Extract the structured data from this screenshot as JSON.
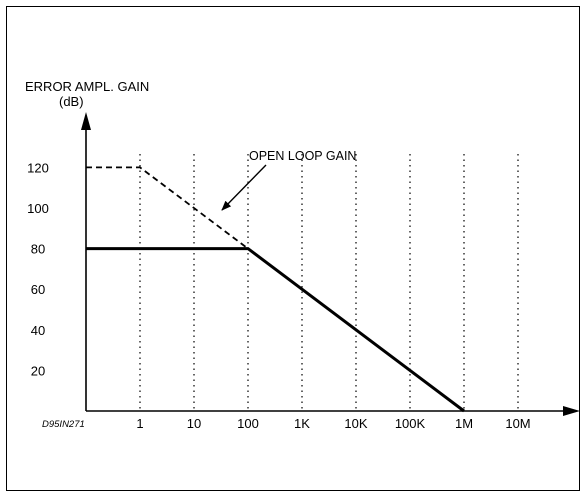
{
  "chart_data": {
    "type": "line",
    "ylabel_line1": "ERROR AMPL. GAIN",
    "ylabel_line2": "(dB)",
    "figure_id": "D95IN271",
    "annotation": "OPEN LOOP GAIN",
    "x_scale": "log",
    "x_ticks": [
      "1",
      "10",
      "100",
      "1K",
      "10K",
      "100K",
      "1M",
      "10M"
    ],
    "x_tick_values": [
      1,
      10,
      100,
      1000,
      10000,
      100000,
      1000000,
      10000000
    ],
    "y_ticks": [
      "20",
      "40",
      "60",
      "80",
      "100",
      "120"
    ],
    "y_tick_values": [
      20,
      40,
      60,
      80,
      100,
      120
    ],
    "xlim": [
      0.1,
      10000000
    ],
    "ylim": [
      0,
      140
    ],
    "grid": "vertical-dotted",
    "series": [
      {
        "name": "OPEN LOOP GAIN",
        "style": "dashed",
        "x": [
          0.1,
          1,
          1000000
        ],
        "y": [
          120,
          120,
          0
        ]
      },
      {
        "style": "solid",
        "x": [
          0.1,
          100,
          1000000
        ],
        "y": [
          80,
          80,
          0
        ]
      }
    ]
  }
}
